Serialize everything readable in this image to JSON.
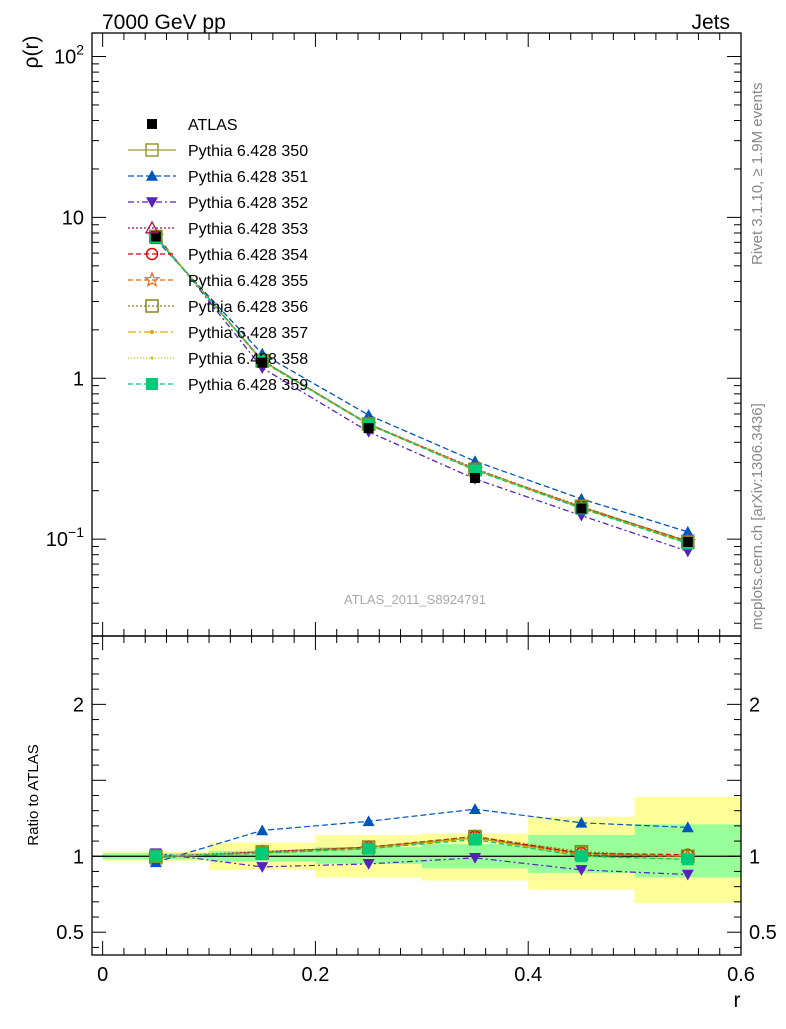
{
  "header": {
    "left": "7000 GeV pp",
    "right": "Jets"
  },
  "side_labels": {
    "rivet": "Rivet 3.1.10, ≥ 1.9M events",
    "mcplots": "mcplots.cern.ch [arXiv:1306.3436]"
  },
  "colors": {
    "ATLAS": "#000000",
    "350": "#999933",
    "351": "#0055bb",
    "352": "#5522bb",
    "353": "#aa1166",
    "354": "#dd0000",
    "355": "#ee6611",
    "356": "#888811",
    "357": "#ddaa00",
    "358": "#bbcc00",
    "359": "#00cc77",
    "band_yellow": "#ffff99",
    "band_green": "#99ff99"
  },
  "chart_data": [
    {
      "type": "line",
      "panel": "main",
      "ylabel": "ρ(r)",
      "yscale": "log",
      "ylim": [
        0.025,
        140
      ],
      "xlim": [
        -0.01,
        0.6
      ],
      "yticks": [
        {
          "v": 100,
          "base": "10",
          "exp": "2"
        },
        {
          "v": 10,
          "base": "10",
          "exp": ""
        },
        {
          "v": 1,
          "base": "1",
          "exp": ""
        },
        {
          "v": 0.1,
          "base": "10",
          "exp": "−1"
        }
      ],
      "watermark": "ATLAS_2011_S8924791",
      "x": [
        0.05,
        0.15,
        0.25,
        0.35,
        0.45,
        0.55
      ],
      "data_series": {
        "name": "ATLAS",
        "values": [
          7.6,
          1.25,
          0.49,
          0.24,
          0.155,
          0.096
        ]
      },
      "series": [
        {
          "name": "Pythia 6.428 350",
          "id": "350",
          "marker": "square-open",
          "dash": "",
          "values": [
            7.6,
            1.29,
            0.52,
            0.27,
            0.158,
            0.097
          ]
        },
        {
          "name": "Pythia 6.428 351",
          "id": "351",
          "marker": "triangle-up",
          "dash": "6,3",
          "values": [
            7.3,
            1.42,
            0.59,
            0.305,
            0.178,
            0.111
          ]
        },
        {
          "name": "Pythia 6.428 352",
          "id": "352",
          "marker": "triangle-down",
          "dash": "6,3,2,3",
          "values": [
            7.8,
            1.16,
            0.465,
            0.237,
            0.14,
            0.084
          ]
        },
        {
          "name": "Pythia 6.428 353",
          "id": "353",
          "marker": "triangle-up-open",
          "dash": "2,2",
          "values": [
            7.6,
            1.29,
            0.52,
            0.275,
            0.157,
            0.096
          ]
        },
        {
          "name": "Pythia 6.428 354",
          "id": "354",
          "marker": "circle-open",
          "dash": "5,3",
          "values": [
            7.6,
            1.28,
            0.52,
            0.272,
            0.158,
            0.097
          ]
        },
        {
          "name": "Pythia 6.428 355",
          "id": "355",
          "marker": "star-open",
          "dash": "5,3",
          "values": [
            7.6,
            1.28,
            0.515,
            0.27,
            0.156,
            0.096
          ]
        },
        {
          "name": "Pythia 6.428 356",
          "id": "356",
          "marker": "square-open",
          "dash": "2,2",
          "values": [
            7.6,
            1.28,
            0.52,
            0.272,
            0.16,
            0.096
          ]
        },
        {
          "name": "Pythia 6.428 357",
          "id": "357",
          "marker": "dot",
          "dash": "8,3,2,3",
          "values": [
            7.6,
            1.27,
            0.515,
            0.27,
            0.156,
            0.094
          ]
        },
        {
          "name": "Pythia 6.428 358",
          "id": "358",
          "marker": "dot-small",
          "dash": "1,2",
          "values": [
            7.6,
            1.27,
            0.515,
            0.27,
            0.156,
            0.094
          ]
        },
        {
          "name": "Pythia 6.428 359",
          "id": "359",
          "marker": "square-filled",
          "dash": "5,3",
          "values": [
            7.5,
            1.28,
            0.515,
            0.268,
            0.155,
            0.094
          ]
        }
      ]
    },
    {
      "type": "line",
      "panel": "ratio",
      "ylabel": "Ratio to ATLAS",
      "xlabel": "r",
      "ylim": [
        0.35,
        2.45
      ],
      "xlim": [
        -0.01,
        0.6
      ],
      "yticks": [
        {
          "v": 2,
          "label": "2"
        },
        {
          "v": 1,
          "label": "1"
        },
        {
          "v": 0.5,
          "label": "0.5"
        }
      ],
      "xticks": [
        {
          "v": 0,
          "label": "0"
        },
        {
          "v": 0.2,
          "label": "0.2"
        },
        {
          "v": 0.4,
          "label": "0.4"
        },
        {
          "v": 0.6,
          "label": "0.6"
        }
      ],
      "bands": [
        {
          "x0": 0.0,
          "x1": 0.1,
          "yellow": [
            0.97,
            1.03
          ],
          "green": [
            0.98,
            1.02
          ]
        },
        {
          "x0": 0.1,
          "x1": 0.2,
          "yellow": [
            0.91,
            1.09
          ],
          "green": [
            0.965,
            1.035
          ]
        },
        {
          "x0": 0.2,
          "x1": 0.3,
          "yellow": [
            0.86,
            1.14
          ],
          "green": [
            0.95,
            1.06
          ]
        },
        {
          "x0": 0.3,
          "x1": 0.4,
          "yellow": [
            0.84,
            1.15
          ],
          "green": [
            0.92,
            1.08
          ]
        },
        {
          "x0": 0.4,
          "x1": 0.5,
          "yellow": [
            0.78,
            1.26
          ],
          "green": [
            0.89,
            1.14
          ]
        },
        {
          "x0": 0.5,
          "x1": 0.6,
          "yellow": [
            0.69,
            1.39
          ],
          "green": [
            0.86,
            1.21
          ]
        }
      ],
      "x": [
        0.05,
        0.15,
        0.25,
        0.35,
        0.45,
        0.55
      ],
      "series": [
        {
          "id": "350",
          "values": [
            0.99,
            1.03,
            1.06,
            1.12,
            1.02,
            1.0
          ]
        },
        {
          "id": "351",
          "values": [
            0.96,
            1.17,
            1.23,
            1.31,
            1.22,
            1.19
          ]
        },
        {
          "id": "352",
          "values": [
            1.02,
            0.93,
            0.95,
            0.99,
            0.91,
            0.88
          ]
        },
        {
          "id": "353",
          "values": [
            1.0,
            1.03,
            1.06,
            1.13,
            1.01,
            1.0
          ]
        },
        {
          "id": "354",
          "values": [
            1.0,
            1.02,
            1.06,
            1.13,
            1.02,
            1.01
          ]
        },
        {
          "id": "355",
          "values": [
            1.0,
            1.02,
            1.05,
            1.12,
            1.01,
            1.0
          ]
        },
        {
          "id": "356",
          "values": [
            1.0,
            1.02,
            1.06,
            1.13,
            1.03,
            1.0
          ]
        },
        {
          "id": "357",
          "values": [
            1.0,
            1.02,
            1.05,
            1.12,
            1.0,
            0.98
          ]
        },
        {
          "id": "358",
          "values": [
            1.0,
            1.02,
            1.05,
            1.12,
            1.0,
            0.98
          ]
        },
        {
          "id": "359",
          "values": [
            1.0,
            1.02,
            1.05,
            1.11,
            1.0,
            0.98
          ]
        }
      ]
    }
  ]
}
